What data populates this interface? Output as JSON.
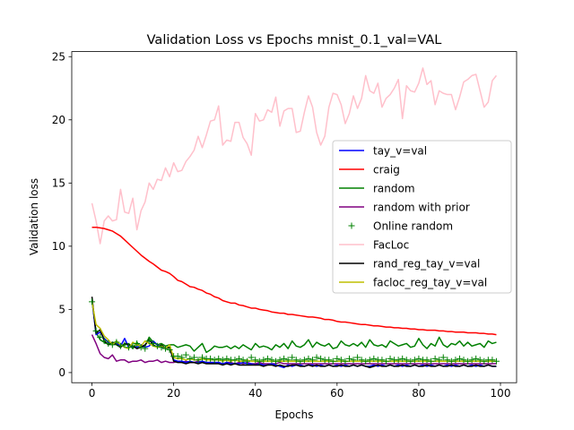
{
  "chart_data": {
    "type": "line",
    "title": "Validation Loss vs Epochs mnist_0.1_val=VAL",
    "xlabel": "Epochs",
    "ylabel": "Validation loss",
    "xlim": [
      -4.95,
      103.95
    ],
    "ylim": [
      -0.8,
      25.4
    ],
    "xticks": [
      0,
      20,
      40,
      60,
      80,
      100
    ],
    "yticks": [
      0,
      5,
      10,
      15,
      20,
      25
    ],
    "grid": false,
    "legend_position": "center-right",
    "series": [
      {
        "name": "tay_v=val",
        "color": "#0000ff",
        "style": "line",
        "y": [
          5.8,
          3.0,
          3.2,
          2.7,
          2.4,
          2.2,
          2.3,
          2.1,
          2.7,
          2.0,
          2.1,
          2.0,
          2.2,
          2.0,
          2.1,
          2.5,
          2.2,
          2.0,
          1.9,
          2.0,
          1.0,
          0.9,
          0.9,
          0.8,
          0.9,
          0.8,
          0.8,
          0.9,
          0.8,
          0.8,
          0.8,
          0.8,
          0.7,
          0.8,
          0.7,
          0.7,
          0.7,
          0.8,
          0.7,
          0.7,
          0.6,
          0.7,
          0.6,
          0.6,
          0.7,
          0.6,
          0.5,
          0.4,
          0.6,
          0.5,
          0.6,
          0.6,
          0.5,
          0.6,
          0.6,
          0.5,
          0.6,
          0.5,
          0.6,
          0.5,
          0.6,
          0.5,
          0.6,
          0.5,
          0.6,
          0.5,
          0.6,
          0.5,
          0.5,
          0.6,
          0.5,
          0.6,
          0.5,
          0.6,
          0.5,
          0.6,
          0.5,
          0.6,
          0.5,
          0.6,
          0.5,
          0.6,
          0.5,
          0.6,
          0.5,
          0.6,
          0.5,
          0.6,
          0.5,
          0.6,
          0.5,
          0.6,
          0.5,
          0.6,
          0.5,
          0.6,
          0.5,
          0.6,
          0.5,
          0.5
        ]
      },
      {
        "name": "craig",
        "color": "#ff0000",
        "style": "line",
        "y": [
          11.5,
          11.5,
          11.45,
          11.4,
          11.3,
          11.2,
          11.0,
          10.8,
          10.5,
          10.2,
          9.9,
          9.6,
          9.3,
          9.05,
          8.8,
          8.6,
          8.35,
          8.1,
          8.0,
          7.85,
          7.6,
          7.3,
          7.2,
          7.0,
          6.8,
          6.75,
          6.6,
          6.5,
          6.3,
          6.2,
          6.0,
          5.9,
          5.7,
          5.6,
          5.5,
          5.5,
          5.35,
          5.3,
          5.2,
          5.1,
          5.1,
          5.0,
          4.95,
          4.9,
          4.8,
          4.75,
          4.7,
          4.7,
          4.6,
          4.6,
          4.55,
          4.5,
          4.45,
          4.4,
          4.4,
          4.35,
          4.3,
          4.2,
          4.2,
          4.15,
          4.05,
          4.0,
          4.0,
          3.95,
          3.9,
          3.85,
          3.8,
          3.8,
          3.75,
          3.7,
          3.7,
          3.65,
          3.6,
          3.6,
          3.55,
          3.55,
          3.5,
          3.5,
          3.45,
          3.45,
          3.4,
          3.4,
          3.35,
          3.35,
          3.35,
          3.3,
          3.3,
          3.25,
          3.25,
          3.2,
          3.2,
          3.2,
          3.15,
          3.15,
          3.15,
          3.1,
          3.1,
          3.05,
          3.05,
          3.0
        ]
      },
      {
        "name": "random",
        "color": "#008000",
        "style": "line",
        "y": [
          5.7,
          3.2,
          2.6,
          2.4,
          2.3,
          2.2,
          2.5,
          2.1,
          2.2,
          2.3,
          1.9,
          2.4,
          2.0,
          2.1,
          2.8,
          2.4,
          2.2,
          2.3,
          2.1,
          2.2,
          2.2,
          2.0,
          2.1,
          2.2,
          2.1,
          1.7,
          2.0,
          2.3,
          1.6,
          1.8,
          2.1,
          2.0,
          2.0,
          2.1,
          1.9,
          2.1,
          1.9,
          2.2,
          2.0,
          1.8,
          2.3,
          2.0,
          2.1,
          2.0,
          1.8,
          2.2,
          2.0,
          2.3,
          1.9,
          2.5,
          2.1,
          2.0,
          2.2,
          2.6,
          2.0,
          2.4,
          2.2,
          2.1,
          2.3,
          1.9,
          2.0,
          2.5,
          2.2,
          2.1,
          2.3,
          2.1,
          2.4,
          2.0,
          2.6,
          2.2,
          2.1,
          2.2,
          2.0,
          2.5,
          2.3,
          2.1,
          2.2,
          2.3,
          2.0,
          2.1,
          2.7,
          2.2,
          1.9,
          2.3,
          2.1,
          2.8,
          2.2,
          2.0,
          2.3,
          2.2,
          2.5,
          2.1,
          2.4,
          2.1,
          2.2,
          2.3,
          2.0,
          2.5,
          2.3,
          2.4
        ]
      },
      {
        "name": "random with prior",
        "color": "#800080",
        "style": "line",
        "y": [
          3.0,
          2.3,
          1.5,
          1.2,
          1.1,
          1.4,
          0.9,
          1.0,
          1.0,
          0.8,
          0.9,
          0.9,
          1.0,
          0.8,
          0.9,
          0.9,
          1.0,
          0.8,
          0.9,
          0.8,
          0.8,
          0.9,
          0.8,
          0.9,
          0.8,
          0.8,
          0.9,
          0.8,
          0.8,
          0.8,
          0.8,
          0.8,
          0.7,
          0.8,
          0.8,
          0.7,
          0.8,
          0.7,
          0.8,
          0.7,
          0.7,
          0.8,
          0.7,
          0.7,
          0.7,
          0.7,
          0.8,
          0.7,
          0.7,
          0.7,
          0.7,
          0.7,
          0.7,
          0.7,
          0.7,
          0.7,
          0.7,
          0.7,
          0.7,
          0.7,
          0.7,
          0.7,
          0.7,
          0.7,
          0.7,
          0.7,
          0.7,
          0.7,
          0.7,
          0.7,
          0.7,
          0.7,
          0.7,
          0.7,
          0.7,
          0.7,
          0.7,
          0.7,
          0.7,
          0.7,
          0.7,
          0.7,
          0.7,
          0.7,
          0.7,
          0.7,
          0.7,
          0.7,
          0.7,
          0.7,
          0.7,
          0.7,
          0.7,
          0.7,
          0.7,
          0.7,
          0.7,
          0.7,
          0.7,
          0.7
        ]
      },
      {
        "name": "Online random",
        "color": "#008000",
        "style": "marker",
        "y": [
          5.6,
          3.3,
          2.8,
          2.5,
          2.3,
          2.2,
          2.4,
          2.1,
          2.2,
          2.0,
          2.1,
          2.3,
          2.0,
          1.9,
          2.5,
          2.3,
          2.1,
          2.0,
          1.9,
          1.8,
          1.3,
          1.3,
          1.2,
          1.4,
          1.1,
          1.2,
          1.0,
          1.2,
          1.1,
          1.1,
          1.0,
          1.1,
          1.0,
          1.1,
          1.0,
          1.0,
          1.1,
          1.0,
          0.9,
          1.2,
          1.0,
          0.9,
          1.0,
          1.1,
          1.0,
          0.9,
          1.0,
          1.1,
          1.0,
          1.2,
          1.0,
          0.9,
          1.0,
          1.1,
          1.0,
          1.2,
          1.1,
          1.0,
          1.0,
          0.9,
          1.1,
          1.0,
          0.9,
          1.1,
          1.0,
          1.2,
          1.0,
          0.9,
          1.0,
          1.1,
          1.0,
          1.0,
          0.9,
          1.1,
          1.0,
          1.0,
          1.1,
          1.0,
          0.9,
          1.0,
          1.1,
          1.0,
          1.0,
          0.9,
          1.1,
          1.0,
          1.2,
          1.0,
          0.9,
          1.0,
          1.1,
          1.0,
          0.9,
          1.0,
          1.1,
          1.0,
          0.9,
          1.0,
          1.0,
          0.9
        ]
      },
      {
        "name": "FacLoc",
        "color": "#ffc0cb",
        "style": "line",
        "y": [
          13.4,
          12.0,
          10.2,
          12.0,
          12.4,
          12.0,
          12.1,
          14.5,
          12.7,
          12.6,
          13.8,
          11.3,
          12.8,
          13.5,
          15.0,
          14.5,
          15.3,
          15.2,
          16.2,
          15.5,
          16.6,
          15.9,
          16.0,
          16.7,
          17.1,
          17.6,
          18.7,
          17.8,
          18.8,
          19.9,
          20.0,
          21.1,
          18.0,
          18.4,
          18.3,
          19.8,
          19.8,
          18.6,
          18.1,
          17.2,
          20.5,
          19.9,
          20.0,
          20.8,
          20.6,
          21.8,
          19.5,
          20.7,
          20.9,
          20.9,
          19.0,
          19.1,
          20.6,
          21.9,
          21.0,
          19.0,
          18.0,
          18.7,
          21.0,
          22.1,
          22.0,
          21.2,
          19.7,
          20.5,
          21.9,
          20.9,
          21.7,
          23.5,
          22.3,
          22.1,
          22.9,
          21.0,
          21.7,
          22.0,
          22.5,
          23.2,
          20.1,
          22.7,
          22.3,
          22.2,
          22.9,
          24.1,
          22.8,
          23.1,
          21.2,
          22.3,
          22.1,
          22.0,
          22.0,
          20.8,
          21.8,
          23.0,
          23.2,
          23.5,
          23.6,
          22.3,
          21.0,
          21.4,
          23.1,
          23.5
        ]
      },
      {
        "name": "rand_reg_tay_v=val",
        "color": "#000000",
        "style": "line",
        "y": [
          6.0,
          3.1,
          3.4,
          2.5,
          2.2,
          2.4,
          2.2,
          2.0,
          2.3,
          2.2,
          2.1,
          1.9,
          2.0,
          2.2,
          2.6,
          2.2,
          2.0,
          2.2,
          1.9,
          2.0,
          0.9,
          0.8,
          0.8,
          0.7,
          0.8,
          0.8,
          0.7,
          0.8,
          0.7,
          0.7,
          0.7,
          0.7,
          0.6,
          0.7,
          0.6,
          0.7,
          0.6,
          0.6,
          0.6,
          0.6,
          0.6,
          0.6,
          0.5,
          0.6,
          0.6,
          0.5,
          0.6,
          0.5,
          0.5,
          0.6,
          0.6,
          0.5,
          0.5,
          0.6,
          0.5,
          0.6,
          0.5,
          0.5,
          0.6,
          0.5,
          0.5,
          0.6,
          0.5,
          0.5,
          0.6,
          0.5,
          0.6,
          0.5,
          0.4,
          0.5,
          0.6,
          0.5,
          0.5,
          0.6,
          0.5,
          0.5,
          0.6,
          0.5,
          0.5,
          0.6,
          0.5,
          0.5,
          0.6,
          0.5,
          0.5,
          0.6,
          0.5,
          0.5,
          0.6,
          0.5,
          0.5,
          0.6,
          0.5,
          0.5,
          0.6,
          0.5,
          0.5,
          0.6,
          0.5,
          0.5
        ]
      },
      {
        "name": "facloc_reg_tay_v=val",
        "color": "#bfbf00",
        "style": "line",
        "y": [
          5.6,
          3.8,
          3.5,
          2.9,
          2.6,
          2.2,
          2.5,
          2.2,
          2.0,
          1.9,
          2.4,
          2.2,
          2.1,
          2.5,
          2.3,
          2.1,
          2.0,
          2.1,
          1.9,
          2.2,
          1.2,
          1.1,
          1.1,
          1.0,
          1.1,
          1.0,
          1.0,
          1.1,
          1.0,
          1.0,
          1.0,
          1.0,
          0.9,
          1.0,
          0.9,
          1.0,
          0.9,
          0.9,
          1.0,
          0.9,
          0.9,
          0.9,
          0.9,
          0.9,
          0.9,
          0.9,
          0.9,
          0.9,
          0.9,
          0.9,
          0.9,
          0.9,
          0.9,
          0.9,
          0.9,
          0.9,
          0.9,
          0.9,
          0.9,
          0.9,
          0.9,
          0.9,
          0.9,
          0.9,
          0.9,
          0.9,
          0.9,
          0.9,
          0.9,
          0.9,
          0.9,
          0.9,
          0.9,
          0.9,
          0.9,
          0.9,
          0.9,
          0.9,
          0.9,
          0.9,
          0.9,
          0.9,
          0.9,
          0.9,
          0.9,
          0.9,
          0.9,
          0.9,
          0.9,
          0.9,
          0.9,
          0.9,
          0.9,
          0.9,
          0.9,
          0.9,
          0.9,
          0.9,
          0.9,
          0.9
        ]
      }
    ]
  }
}
